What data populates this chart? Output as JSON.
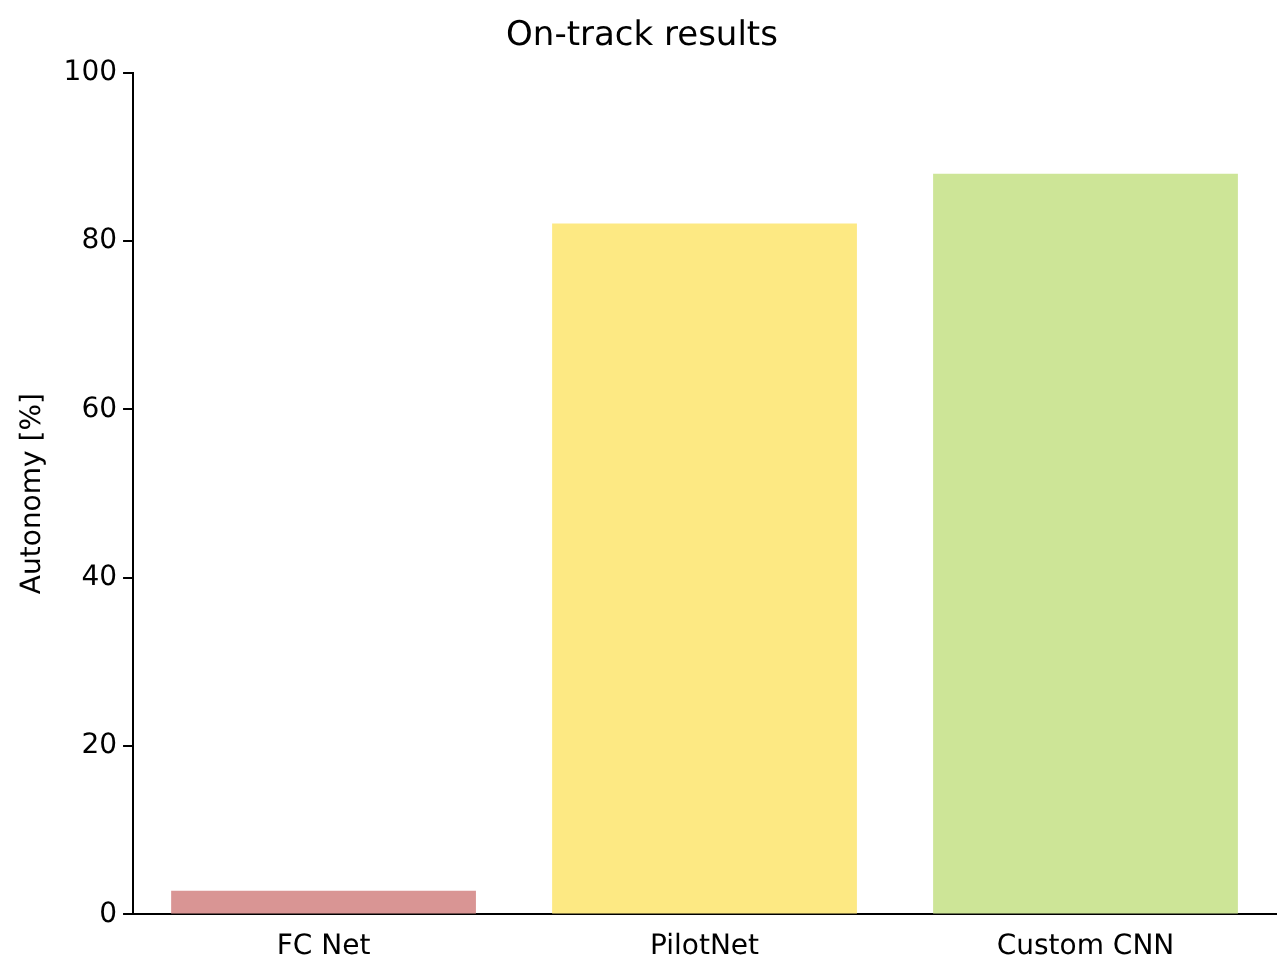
{
  "chart_data": {
    "type": "bar",
    "title": "On-track results",
    "ylabel": "Autonomy [%]",
    "categories": [
      "FC Net",
      "PilotNet",
      "Custom CNN"
    ],
    "values": [
      2.8,
      82.1,
      88.0
    ],
    "colors": [
      "#d99594",
      "#fde983",
      "#cde597"
    ],
    "ylim": [
      0,
      100
    ],
    "yticks": [
      0,
      20,
      40,
      60,
      80,
      100
    ],
    "grid": false,
    "legend": false
  }
}
